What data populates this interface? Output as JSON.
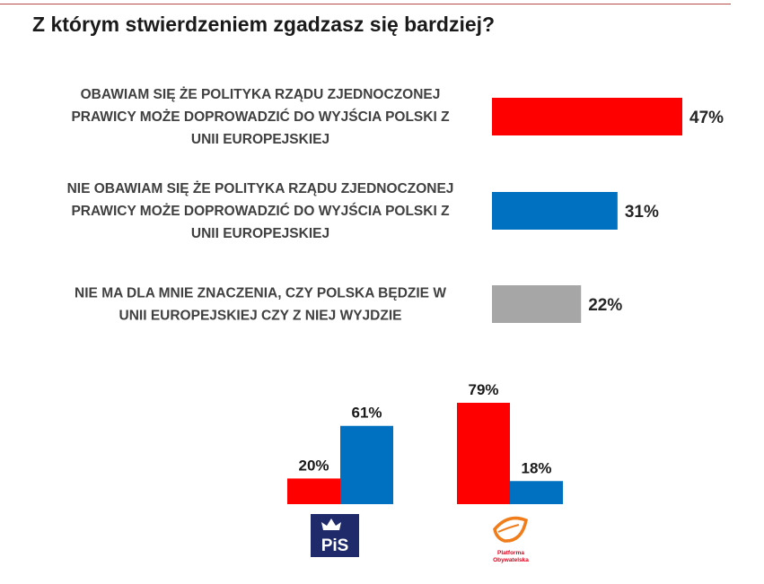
{
  "title": "Z którym stwierdzeniem zgadzasz się bardziej?",
  "colors": {
    "red": "#ff0000",
    "blue": "#0070c0",
    "gray": "#a6a6a6"
  },
  "chart_data": [
    {
      "type": "bar",
      "orientation": "horizontal",
      "categories": [
        [
          "OBAWIAM SIĘ ŻE POLITYKA RZĄDU ZJEDNOCZONEJ",
          "PRAWICY MOŻE DOPROWADZIĆ DO WYJŚCIA POLSKI Z",
          "UNII EUROPEJSKIEJ"
        ],
        [
          "NIE OBAWIAM SIĘ ŻE POLITYKA RZĄDU ZJEDNOCZONEJ",
          "PRAWICY MOŻE DOPROWADZIĆ DO WYJŚCIA POLSKI Z",
          "UNII EUROPEJSKIEJ"
        ],
        [
          "NIE MA DLA MNIE ZNACZENIA, CZY POLSKA BĘDZIE W",
          "UNII EUROPEJSKIEJ  CZY Z NIEJ WYJDZIE"
        ]
      ],
      "values": [
        47,
        31,
        22
      ],
      "labels": [
        "47%",
        "31%",
        "22%"
      ],
      "colors": [
        "#ff0000",
        "#0070c0",
        "#a6a6a6"
      ]
    },
    {
      "type": "bar",
      "orientation": "vertical",
      "groups": [
        "PiS",
        "Platforma Obywatelska"
      ],
      "series": [
        {
          "name": "obawiam się",
          "color": "#ff0000",
          "values": [
            20,
            79
          ],
          "labels": [
            "20%",
            "79%"
          ]
        },
        {
          "name": "nie obawiam się",
          "color": "#0070c0",
          "values": [
            61,
            18
          ],
          "labels": [
            "61%",
            "18%"
          ]
        }
      ]
    }
  ],
  "logos": {
    "pis": {
      "text": "PiS"
    },
    "po": {
      "line1": "Platforma",
      "line2": "Obywatelska"
    }
  }
}
